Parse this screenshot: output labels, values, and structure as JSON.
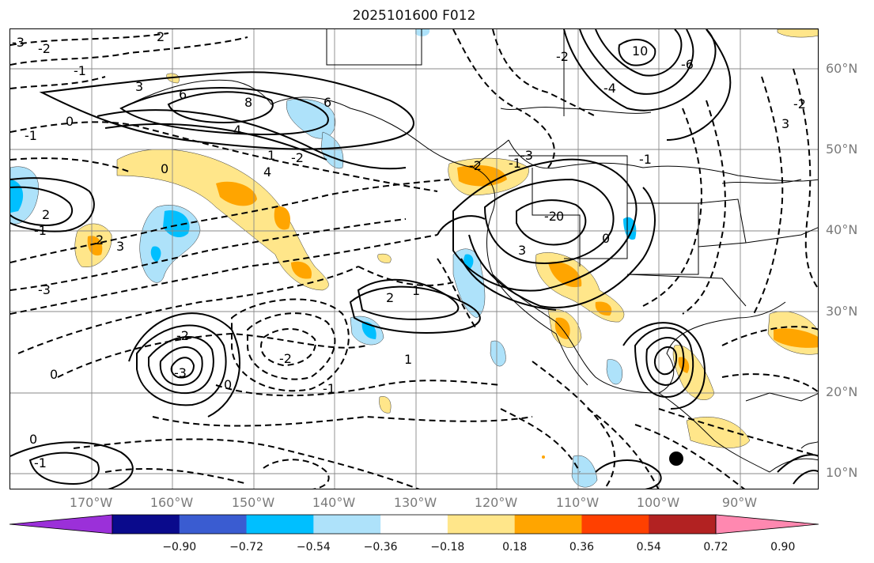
{
  "title": "2025101600 F012",
  "latitude_labels": [
    "60°N",
    "50°N",
    "40°N",
    "30°N",
    "20°N",
    "10°N"
  ],
  "longitude_labels": [
    "170°W",
    "160°W",
    "150°W",
    "140°W",
    "130°W",
    "120°W",
    "110°W",
    "100°W",
    "90°W"
  ],
  "contour_labels": [
    "-3",
    "-2",
    "-1",
    "0",
    "-1",
    "2",
    "3",
    "6",
    "8",
    "1",
    "4",
    "-2",
    "6",
    "10",
    "-4",
    "-2",
    "-2",
    "3",
    "-6",
    "2",
    "4",
    "0",
    "-1",
    "2",
    "-3",
    "3",
    "-2",
    "-1",
    "-3",
    "-2",
    "0",
    "0",
    "-1",
    "0",
    "0",
    "-1",
    "1",
    "1",
    "2",
    "-2",
    "3",
    "0",
    "-1",
    "-3",
    "-2"
  ],
  "colorbar": {
    "ticks": [
      "−0.90",
      "−0.72",
      "−0.54",
      "−0.36",
      "−0.18",
      "0.18",
      "0.36",
      "0.54",
      "0.72",
      "0.90"
    ],
    "colors": [
      "#9b30d9",
      "#0a0a8c",
      "#3a5cd1",
      "#00bfff",
      "#aee2fa",
      "#ffffff",
      "#ffe68a",
      "#ffa500",
      "#ff4000",
      "#b22222",
      "#ff88b0"
    ],
    "extend": "both"
  },
  "colors": {
    "land_lines": "#000000",
    "grid": "#888888",
    "axis_labels": "#7a7a7a"
  }
}
